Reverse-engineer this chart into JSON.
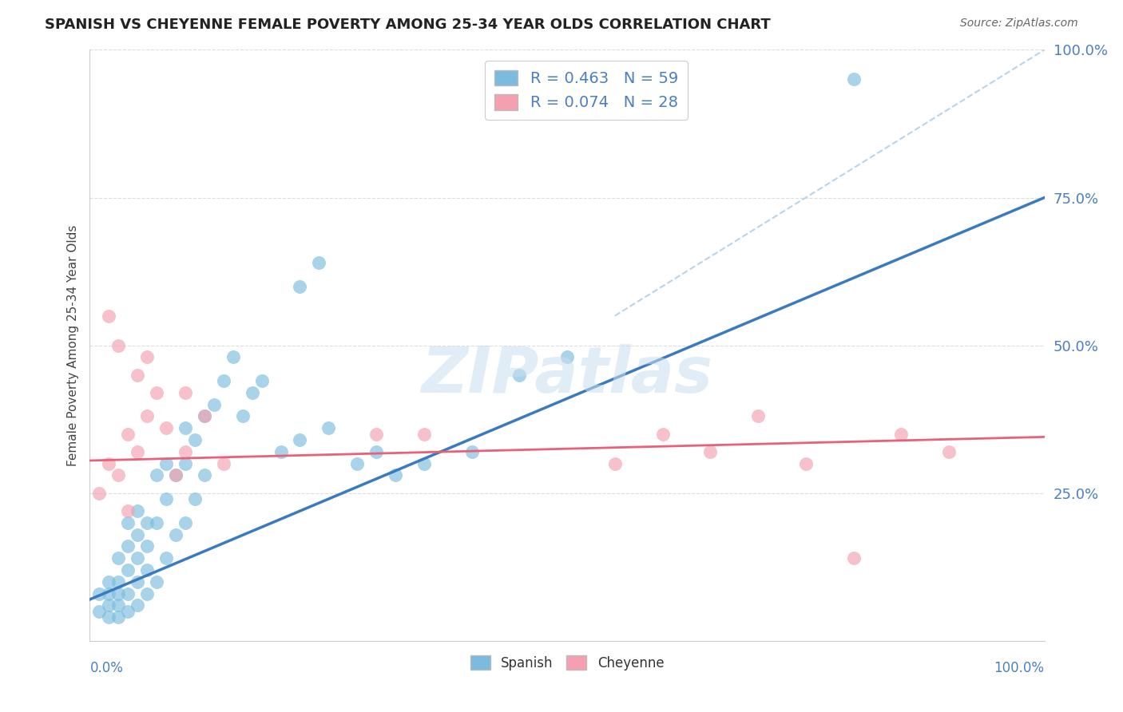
{
  "title": "SPANISH VS CHEYENNE FEMALE POVERTY AMONG 25-34 YEAR OLDS CORRELATION CHART",
  "source": "Source: ZipAtlas.com",
  "ylabel": "Female Poverty Among 25-34 Year Olds",
  "xlim": [
    0.0,
    1.0
  ],
  "ylim": [
    0.0,
    1.0
  ],
  "yticks": [
    0.0,
    0.25,
    0.5,
    0.75,
    1.0
  ],
  "ytick_labels": [
    "",
    "25.0%",
    "50.0%",
    "75.0%",
    "100.0%"
  ],
  "watermark": "ZIPatlas",
  "legend_blue_label": "R = 0.463   N = 59",
  "legend_pink_label": "R = 0.074   N = 28",
  "blue_color": "#7bbcde",
  "pink_color": "#f4a0b0",
  "blue_line_color": "#3a7bbf",
  "pink_line_color": "#e8607a",
  "diagonal_color": "#b8d4ea",
  "grid_color": "#dddddd",
  "tick_label_color": "#4a7fc1",
  "blue_line": [
    0.0,
    0.07,
    1.0,
    0.75
  ],
  "pink_line": [
    0.0,
    0.305,
    1.0,
    0.345
  ],
  "diag_line": [
    0.55,
    0.55,
    1.02,
    1.02
  ],
  "spanish_x": [
    0.01,
    0.01,
    0.02,
    0.02,
    0.02,
    0.02,
    0.03,
    0.03,
    0.03,
    0.03,
    0.03,
    0.04,
    0.04,
    0.04,
    0.04,
    0.04,
    0.05,
    0.05,
    0.05,
    0.05,
    0.05,
    0.06,
    0.06,
    0.06,
    0.06,
    0.07,
    0.07,
    0.07,
    0.08,
    0.08,
    0.08,
    0.09,
    0.09,
    0.1,
    0.1,
    0.1,
    0.11,
    0.11,
    0.12,
    0.12,
    0.13,
    0.14,
    0.15,
    0.16,
    0.17,
    0.18,
    0.2,
    0.22,
    0.25,
    0.28,
    0.3,
    0.32,
    0.35,
    0.4,
    0.45,
    0.5,
    0.22,
    0.24,
    0.8
  ],
  "spanish_y": [
    0.05,
    0.08,
    0.04,
    0.06,
    0.08,
    0.1,
    0.04,
    0.06,
    0.08,
    0.1,
    0.14,
    0.05,
    0.08,
    0.12,
    0.16,
    0.2,
    0.06,
    0.1,
    0.14,
    0.18,
    0.22,
    0.08,
    0.12,
    0.16,
    0.2,
    0.1,
    0.2,
    0.28,
    0.14,
    0.24,
    0.3,
    0.18,
    0.28,
    0.2,
    0.3,
    0.36,
    0.24,
    0.34,
    0.28,
    0.38,
    0.4,
    0.44,
    0.48,
    0.38,
    0.42,
    0.44,
    0.32,
    0.34,
    0.36,
    0.3,
    0.32,
    0.28,
    0.3,
    0.32,
    0.45,
    0.48,
    0.6,
    0.64,
    0.95
  ],
  "cheyenne_x": [
    0.01,
    0.02,
    0.03,
    0.04,
    0.04,
    0.05,
    0.06,
    0.07,
    0.08,
    0.09,
    0.1,
    0.1,
    0.12,
    0.14,
    0.02,
    0.03,
    0.05,
    0.06,
    0.55,
    0.6,
    0.65,
    0.7,
    0.75,
    0.8,
    0.85,
    0.9,
    0.3,
    0.35
  ],
  "cheyenne_y": [
    0.25,
    0.3,
    0.28,
    0.35,
    0.22,
    0.32,
    0.38,
    0.42,
    0.36,
    0.28,
    0.32,
    0.42,
    0.38,
    0.3,
    0.55,
    0.5,
    0.45,
    0.48,
    0.3,
    0.35,
    0.32,
    0.38,
    0.3,
    0.14,
    0.35,
    0.32,
    0.35,
    0.35
  ]
}
